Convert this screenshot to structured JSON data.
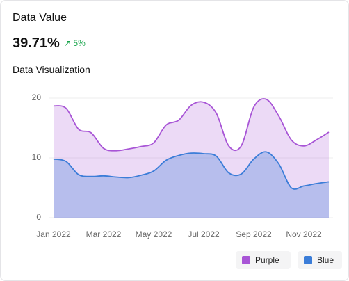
{
  "header": {
    "title": "Data Value",
    "value": "39.71%",
    "change": "5%"
  },
  "chart_data": {
    "type": "area",
    "title": "Data Visualization",
    "categories": [
      "Jan 2022",
      null,
      null,
      null,
      "Mar 2022",
      null,
      null,
      null,
      "May 2022",
      null,
      null,
      null,
      "Jul 2022",
      null,
      null,
      null,
      "Sep 2022",
      null,
      null,
      null,
      "Nov 2022",
      null,
      null
    ],
    "series": [
      {
        "name": "Purple",
        "color": "#a855d6",
        "values": [
          18.7,
          18.3,
          14.8,
          14.2,
          11.6,
          11.2,
          11.5,
          11.9,
          12.5,
          15.5,
          16.3,
          18.8,
          19.3,
          17.5,
          12,
          12,
          18.5,
          19.8,
          17,
          13,
          12,
          13,
          14.3
        ]
      },
      {
        "name": "Blue",
        "color": "#3b7dd8",
        "values": [
          9.8,
          9.4,
          7.2,
          6.9,
          7.0,
          6.8,
          6.7,
          7.1,
          7.8,
          9.6,
          10.4,
          10.8,
          10.7,
          10.3,
          7.5,
          7.3,
          9.8,
          11,
          9,
          5,
          5.3,
          5.7,
          6.0
        ]
      }
    ],
    "ylim": [
      0,
      20
    ],
    "yticks": [
      0,
      10,
      20
    ],
    "grid": true,
    "legend": "bottom-right"
  }
}
